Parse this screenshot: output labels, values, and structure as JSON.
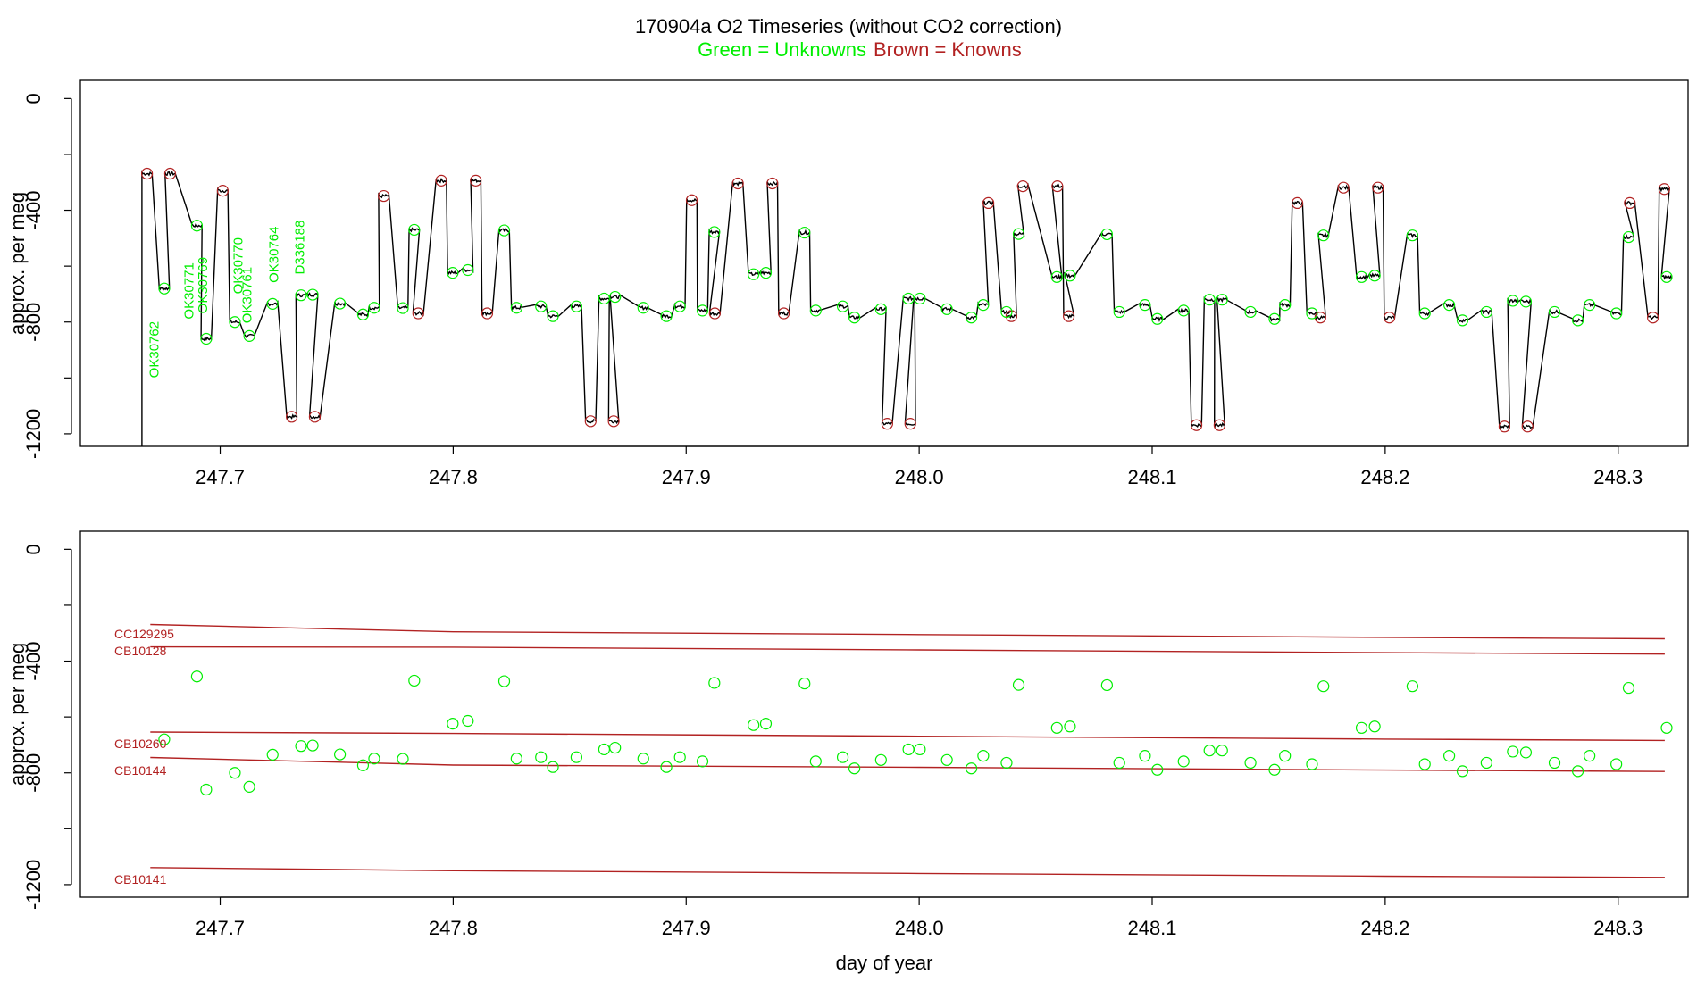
{
  "title": {
    "main": "170904a   O2 Timeseries (without CO2 correction)",
    "legend_green": "Green = Unknowns",
    "legend_brown": "Brown = Knowns"
  },
  "colors": {
    "unknown": "#00ee00",
    "known": "#b22222",
    "trace": "#000000",
    "axis": "#000000"
  },
  "chart_data": [
    {
      "type": "line",
      "panel": "top",
      "xlabel": "",
      "ylabel": "approx. per meg",
      "xlim": [
        247.64,
        248.33
      ],
      "ylim": [
        -1245,
        65
      ],
      "xticks": [
        "247.7",
        "247.8",
        "247.9",
        "248.0",
        "248.1",
        "248.2",
        "248.3"
      ],
      "yticks": [
        "0",
        "-400",
        "-800",
        "-1200"
      ],
      "series": [
        {
          "name": "Knowns",
          "values": [
            [
              247.6686,
              -269
            ],
            [
              247.6785,
              -269
            ],
            [
              247.7011,
              -330
            ],
            [
              247.7307,
              -1139
            ],
            [
              247.7406,
              -1139
            ],
            [
              247.7702,
              -349
            ],
            [
              247.785,
              -769
            ],
            [
              247.7949,
              -294
            ],
            [
              247.8097,
              -294
            ],
            [
              247.8146,
              -769
            ],
            [
              247.859,
              -1155
            ],
            [
              247.8689,
              -1155
            ],
            [
              247.9024,
              -364
            ],
            [
              247.9123,
              -769
            ],
            [
              247.9222,
              -304
            ],
            [
              247.937,
              -304
            ],
            [
              247.9419,
              -769
            ],
            [
              247.9863,
              -1164
            ],
            [
              247.9962,
              -1164
            ],
            [
              248.0297,
              -374
            ],
            [
              248.0396,
              -779
            ],
            [
              248.0445,
              -314
            ],
            [
              248.0593,
              -314
            ],
            [
              248.0642,
              -779
            ],
            [
              248.119,
              -1169
            ],
            [
              248.1289,
              -1169
            ],
            [
              248.1623,
              -374
            ],
            [
              248.1722,
              -784
            ],
            [
              248.1821,
              -319
            ],
            [
              248.1969,
              -319
            ],
            [
              248.2018,
              -784
            ],
            [
              248.2512,
              -1174
            ],
            [
              248.2611,
              -1174
            ],
            [
              248.305,
              -374
            ],
            [
              248.3149,
              -784
            ],
            [
              248.3198,
              -324
            ]
          ]
        },
        {
          "name": "Unknowns",
          "values": [
            [
              247.676,
              -680
            ],
            [
              247.69,
              -455
            ],
            [
              247.694,
              -860
            ],
            [
              247.7063,
              -800
            ],
            [
              247.7125,
              -850
            ],
            [
              247.7225,
              -735
            ],
            [
              247.7347,
              -704
            ],
            [
              247.7397,
              -702
            ],
            [
              247.7514,
              -734
            ],
            [
              247.7613,
              -773
            ],
            [
              247.7661,
              -749
            ],
            [
              247.7784,
              -750
            ],
            [
              247.7833,
              -470
            ],
            [
              247.7998,
              -624
            ],
            [
              247.8063,
              -614
            ],
            [
              247.8219,
              -472
            ],
            [
              247.8272,
              -749
            ],
            [
              247.8377,
              -744
            ],
            [
              247.8428,
              -779
            ],
            [
              247.8529,
              -744
            ],
            [
              247.8648,
              -716
            ],
            [
              247.8695,
              -710
            ],
            [
              247.8816,
              -749
            ],
            [
              247.8915,
              -779
            ],
            [
              247.8973,
              -744
            ],
            [
              247.907,
              -759
            ],
            [
              247.9121,
              -478
            ],
            [
              247.9289,
              -629
            ],
            [
              247.9342,
              -624
            ],
            [
              247.9508,
              -480
            ],
            [
              247.9556,
              -759
            ],
            [
              247.9672,
              -744
            ],
            [
              247.9722,
              -784
            ],
            [
              247.9836,
              -754
            ],
            [
              247.9954,
              -716
            ],
            [
              248.0003,
              -716
            ],
            [
              248.0119,
              -754
            ],
            [
              248.0224,
              -784
            ],
            [
              248.0275,
              -739
            ],
            [
              248.0375,
              -764
            ],
            [
              248.0427,
              -485
            ],
            [
              248.0591,
              -639
            ],
            [
              248.0647,
              -634
            ],
            [
              248.0806,
              -486
            ],
            [
              248.0859,
              -764
            ],
            [
              248.0969,
              -739
            ],
            [
              248.1022,
              -789
            ],
            [
              248.1135,
              -759
            ],
            [
              248.1246,
              -720
            ],
            [
              248.13,
              -720
            ],
            [
              248.1422,
              -764
            ],
            [
              248.1525,
              -789
            ],
            [
              248.157,
              -739
            ],
            [
              248.1686,
              -769
            ],
            [
              248.1735,
              -490
            ],
            [
              248.1899,
              -639
            ],
            [
              248.1955,
              -634
            ],
            [
              248.2117,
              -490
            ],
            [
              248.217,
              -769
            ],
            [
              248.2275,
              -739
            ],
            [
              248.2332,
              -794
            ],
            [
              248.2435,
              -764
            ],
            [
              248.2548,
              -724
            ],
            [
              248.2604,
              -727
            ],
            [
              248.2727,
              -764
            ],
            [
              248.2827,
              -794
            ],
            [
              248.2877,
              -739
            ],
            [
              248.2992,
              -769
            ],
            [
              248.3045,
              -496
            ],
            [
              248.3208,
              -639
            ]
          ]
        }
      ],
      "annotations": [
        "OK30762",
        "OK30771",
        "OK30769",
        "OK30770",
        "OK30761",
        "OK30764",
        "D336188"
      ]
    },
    {
      "type": "scatter",
      "panel": "bottom",
      "xlabel": "day of year",
      "ylabel": "approx. per meg",
      "xlim": [
        247.64,
        248.33
      ],
      "ylim": [
        -1245,
        65
      ],
      "xticks": [
        "247.7",
        "247.8",
        "247.9",
        "248.0",
        "248.1",
        "248.2",
        "248.3"
      ],
      "yticks": [
        "0",
        "-400",
        "-800",
        "-1200"
      ],
      "reference_lines": [
        {
          "name": "CC129295",
          "values": [
            [
              247.67,
              -269
            ],
            [
              247.8,
              -295
            ],
            [
              248.0,
              -305
            ],
            [
              248.2,
              -315
            ],
            [
              248.32,
              -320
            ]
          ]
        },
        {
          "name": "CB10128",
          "values": [
            [
              247.67,
              -349
            ],
            [
              247.8,
              -350
            ],
            [
              248.0,
              -360
            ],
            [
              248.2,
              -370
            ],
            [
              248.32,
              -375
            ]
          ]
        },
        {
          "name": "CB10260",
          "values": [
            [
              247.67,
              -654
            ],
            [
              247.8,
              -659
            ],
            [
              248.0,
              -669
            ],
            [
              248.2,
              -679
            ],
            [
              248.32,
              -684
            ]
          ]
        },
        {
          "name": "CB10144",
          "values": [
            [
              247.67,
              -745
            ],
            [
              247.8,
              -772
            ],
            [
              248.0,
              -780
            ],
            [
              248.2,
              -790
            ],
            [
              248.32,
              -795
            ]
          ]
        },
        {
          "name": "CB10141",
          "values": [
            [
              247.67,
              -1139
            ],
            [
              247.8,
              -1150
            ],
            [
              248.0,
              -1160
            ],
            [
              248.2,
              -1170
            ],
            [
              248.32,
              -1174
            ]
          ]
        }
      ],
      "series": [
        {
          "name": "Unknowns",
          "values": [
            [
              247.676,
              -680
            ],
            [
              247.69,
              -455
            ],
            [
              247.694,
              -860
            ],
            [
              247.7063,
              -800
            ],
            [
              247.7125,
              -850
            ],
            [
              247.7225,
              -735
            ],
            [
              247.7347,
              -704
            ],
            [
              247.7397,
              -702
            ],
            [
              247.7514,
              -734
            ],
            [
              247.7613,
              -773
            ],
            [
              247.7661,
              -749
            ],
            [
              247.7784,
              -750
            ],
            [
              247.7833,
              -470
            ],
            [
              247.7998,
              -624
            ],
            [
              247.8063,
              -614
            ],
            [
              247.8219,
              -472
            ],
            [
              247.8272,
              -749
            ],
            [
              247.8377,
              -744
            ],
            [
              247.8428,
              -779
            ],
            [
              247.8529,
              -744
            ],
            [
              247.8648,
              -716
            ],
            [
              247.8695,
              -710
            ],
            [
              247.8816,
              -749
            ],
            [
              247.8915,
              -779
            ],
            [
              247.8973,
              -744
            ],
            [
              247.907,
              -759
            ],
            [
              247.9121,
              -478
            ],
            [
              247.9289,
              -629
            ],
            [
              247.9342,
              -624
            ],
            [
              247.9508,
              -480
            ],
            [
              247.9556,
              -759
            ],
            [
              247.9672,
              -744
            ],
            [
              247.9722,
              -784
            ],
            [
              247.9836,
              -754
            ],
            [
              247.9954,
              -716
            ],
            [
              248.0003,
              -716
            ],
            [
              248.0119,
              -754
            ],
            [
              248.0224,
              -784
            ],
            [
              248.0275,
              -739
            ],
            [
              248.0375,
              -764
            ],
            [
              248.0427,
              -485
            ],
            [
              248.0591,
              -639
            ],
            [
              248.0647,
              -634
            ],
            [
              248.0806,
              -486
            ],
            [
              248.0859,
              -764
            ],
            [
              248.0969,
              -739
            ],
            [
              248.1022,
              -789
            ],
            [
              248.1135,
              -759
            ],
            [
              248.1246,
              -720
            ],
            [
              248.13,
              -720
            ],
            [
              248.1422,
              -764
            ],
            [
              248.1525,
              -789
            ],
            [
              248.157,
              -739
            ],
            [
              248.1686,
              -769
            ],
            [
              248.1735,
              -490
            ],
            [
              248.1899,
              -639
            ],
            [
              248.1955,
              -634
            ],
            [
              248.2117,
              -490
            ],
            [
              248.217,
              -769
            ],
            [
              248.2275,
              -739
            ],
            [
              248.2332,
              -794
            ],
            [
              248.2435,
              -764
            ],
            [
              248.2548,
              -724
            ],
            [
              248.2604,
              -727
            ],
            [
              248.2727,
              -764
            ],
            [
              248.2827,
              -794
            ],
            [
              248.2877,
              -739
            ],
            [
              248.2992,
              -769
            ],
            [
              248.3045,
              -496
            ],
            [
              248.3208,
              -639
            ]
          ]
        }
      ]
    }
  ]
}
